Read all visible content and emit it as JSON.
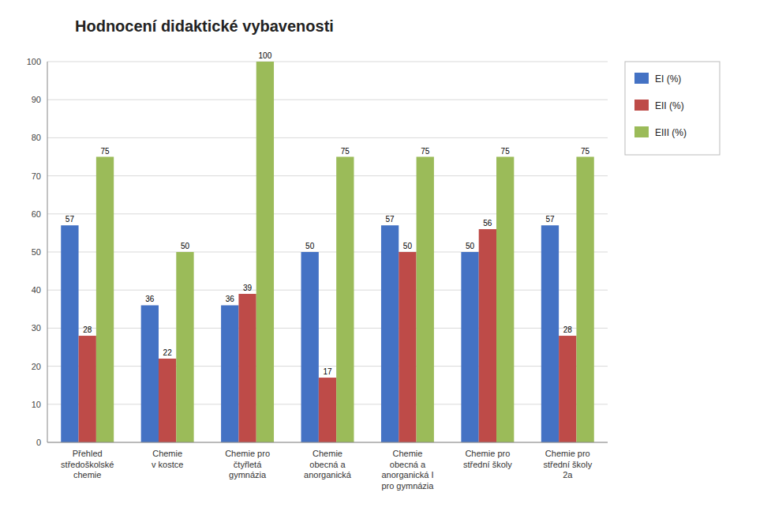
{
  "chart_data": {
    "type": "bar",
    "title": "Hodnocení didaktické vybavenosti",
    "categories": [
      "Přehled\nstředoškolské\nchemie",
      "Chemie\nv kostce",
      "Chemie pro\nčtyřletá\ngymnázia",
      "Chemie\nobecná a\nanorganická",
      "Chemie\nobecná a\nanorganická I\npro gymnázia",
      "Chemie pro\nstřední školy",
      "Chemie pro\nstřední školy\n2a"
    ],
    "series": [
      {
        "name": "EI (%)",
        "color": "#4472C4",
        "values": [
          57,
          36,
          36,
          50,
          57,
          50,
          57
        ]
      },
      {
        "name": "EII (%)",
        "color": "#BE4B48",
        "values": [
          28,
          22,
          39,
          17,
          50,
          56,
          28
        ]
      },
      {
        "name": "EIII (%)",
        "color": "#9BBB59",
        "values": [
          75,
          50,
          100,
          75,
          75,
          75,
          75
        ]
      }
    ],
    "ylim": [
      0,
      100
    ],
    "yticks": [
      0,
      10,
      20,
      30,
      40,
      50,
      60,
      70,
      80,
      90,
      100
    ],
    "grid": true,
    "legend": "right",
    "data_labels": true
  }
}
